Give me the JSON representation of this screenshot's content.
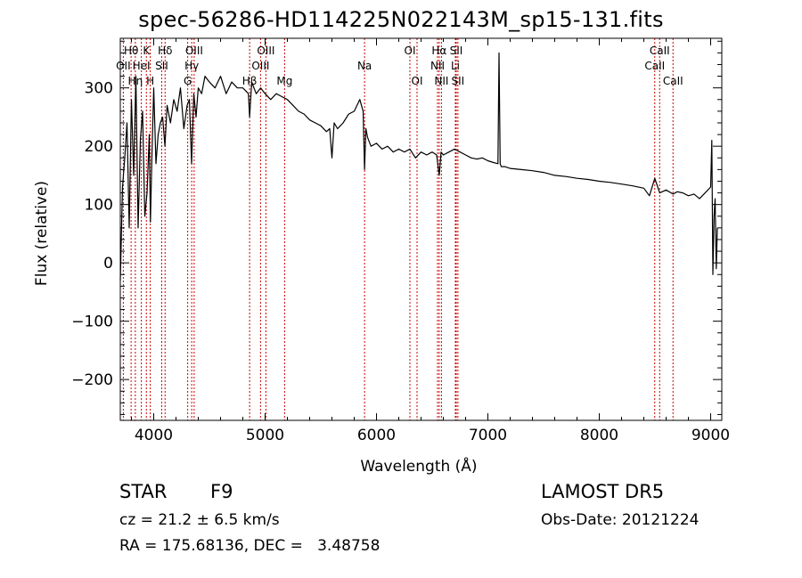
{
  "title": "spec-56286-HD114225N022143M_sp15-131.fits",
  "info": {
    "class_label": "STAR",
    "subclass": "F9",
    "survey": "LAMOST DR5",
    "cz": "cz = 21.2 ± 6.5 km/s",
    "obs_date": "Obs-Date: 20121224",
    "radec": "RA = 175.68136, DEC =   3.48758"
  },
  "chart_data": {
    "type": "line",
    "title": "spec-56286-HD114225N022143M_sp15-131.fits",
    "xlabel": "Wavelength (Å)",
    "ylabel": "Flux (relative)",
    "xlim": [
      3700,
      9100
    ],
    "ylim": [
      -270,
      385
    ],
    "xticks": [
      4000,
      5000,
      6000,
      7000,
      8000,
      9000
    ],
    "yticks": [
      -200,
      -100,
      0,
      100,
      200,
      300
    ],
    "line_color": "#000000",
    "marker_color": "#cc0000",
    "series": [
      {
        "x": [
          3700,
          3720,
          3740,
          3760,
          3780,
          3800,
          3820,
          3840,
          3860,
          3880,
          3900,
          3920,
          3940,
          3960,
          3970,
          3985,
          4000,
          4020,
          4040,
          4060,
          4080,
          4101,
          4120,
          4150,
          4180,
          4210,
          4240,
          4270,
          4300,
          4320,
          4340,
          4360,
          4380,
          4400,
          4430,
          4460,
          4500,
          4550,
          4600,
          4650,
          4700,
          4750,
          4800,
          4850,
          4861,
          4880,
          4920,
          4960,
          5000,
          5050,
          5100,
          5150,
          5200,
          5250,
          5300,
          5350,
          5400,
          5450,
          5500,
          5550,
          5580,
          5600,
          5620,
          5650,
          5700,
          5750,
          5800,
          5850,
          5880,
          5893,
          5905,
          5920,
          5950,
          6000,
          6050,
          6100,
          6150,
          6200,
          6250,
          6300,
          6350,
          6400,
          6450,
          6500,
          6540,
          6563,
          6580,
          6600,
          6650,
          6700,
          6750,
          6800,
          6850,
          6900,
          6950,
          7000,
          7050,
          7090,
          7100,
          7110,
          7120,
          7150,
          7200,
          7300,
          7400,
          7500,
          7600,
          7700,
          7800,
          7900,
          8000,
          8100,
          8200,
          8300,
          8400,
          8450,
          8498,
          8542,
          8600,
          8662,
          8700,
          8750,
          8800,
          8850,
          8900,
          8950,
          9000,
          9010,
          9020,
          9030,
          9040,
          9050,
          9060
        ],
        "y": [
          -30,
          130,
          180,
          240,
          60,
          280,
          150,
          320,
          60,
          210,
          260,
          80,
          120,
          220,
          70,
          190,
          300,
          170,
          220,
          240,
          250,
          200,
          270,
          240,
          280,
          260,
          300,
          230,
          270,
          280,
          170,
          290,
          250,
          300,
          290,
          320,
          310,
          300,
          320,
          290,
          310,
          300,
          300,
          290,
          250,
          310,
          290,
          300,
          290,
          280,
          290,
          285,
          280,
          270,
          260,
          255,
          245,
          240,
          235,
          225,
          230,
          180,
          240,
          230,
          240,
          255,
          260,
          280,
          260,
          160,
          230,
          215,
          200,
          205,
          195,
          200,
          190,
          195,
          190,
          195,
          180,
          190,
          185,
          190,
          185,
          150,
          190,
          185,
          190,
          195,
          190,
          185,
          180,
          178,
          180,
          175,
          172,
          170,
          360,
          170,
          165,
          165,
          162,
          160,
          158,
          155,
          150,
          148,
          145,
          143,
          140,
          138,
          135,
          132,
          128,
          115,
          145,
          120,
          125,
          118,
          122,
          120,
          115,
          118,
          110,
          120,
          130,
          210,
          -20,
          80,
          110,
          -10,
          60
        ]
      }
    ],
    "line_markers": [
      {
        "label": "Hθ",
        "x": 3797,
        "row": 1
      },
      {
        "label": "OII",
        "x": 3727,
        "row": 2
      },
      {
        "label": "Hη",
        "x": 3835,
        "row": 3
      },
      {
        "label": "K",
        "x": 3934,
        "row": 1
      },
      {
        "label": "HeI",
        "x": 3889,
        "row": 2
      },
      {
        "label": "H",
        "x": 3969,
        "row": 3
      },
      {
        "label": "Hδ",
        "x": 4102,
        "row": 1
      },
      {
        "label": "SII",
        "x": 4072,
        "row": 2
      },
      {
        "label": "OIII",
        "x": 4363,
        "row": 1
      },
      {
        "label": "Hγ",
        "x": 4341,
        "row": 2
      },
      {
        "label": "G",
        "x": 4305,
        "row": 3
      },
      {
        "label": "OIII",
        "x": 5007,
        "row": 1
      },
      {
        "label": "OIII",
        "x": 4959,
        "row": 2
      },
      {
        "label": "Hβ",
        "x": 4861,
        "row": 3
      },
      {
        "label": "Mg",
        "x": 5175,
        "row": 3
      },
      {
        "label": "Na",
        "x": 5893,
        "row": 2
      },
      {
        "label": "OI",
        "x": 6300,
        "row": 1
      },
      {
        "label": "OI",
        "x": 6364,
        "row": 3
      },
      {
        "label": "Hα",
        "x": 6563,
        "row": 1
      },
      {
        "label": "SII",
        "x": 6716,
        "row": 1
      },
      {
        "label": "NII",
        "x": 6548,
        "row": 2
      },
      {
        "label": "Li",
        "x": 6708,
        "row": 2
      },
      {
        "label": "NII",
        "x": 6583,
        "row": 3
      },
      {
        "label": "SII",
        "x": 6731,
        "row": 3
      },
      {
        "label": "CaII",
        "x": 8542,
        "row": 1
      },
      {
        "label": "CaII",
        "x": 8498,
        "row": 2
      },
      {
        "label": "CaII",
        "x": 8662,
        "row": 3
      }
    ]
  }
}
